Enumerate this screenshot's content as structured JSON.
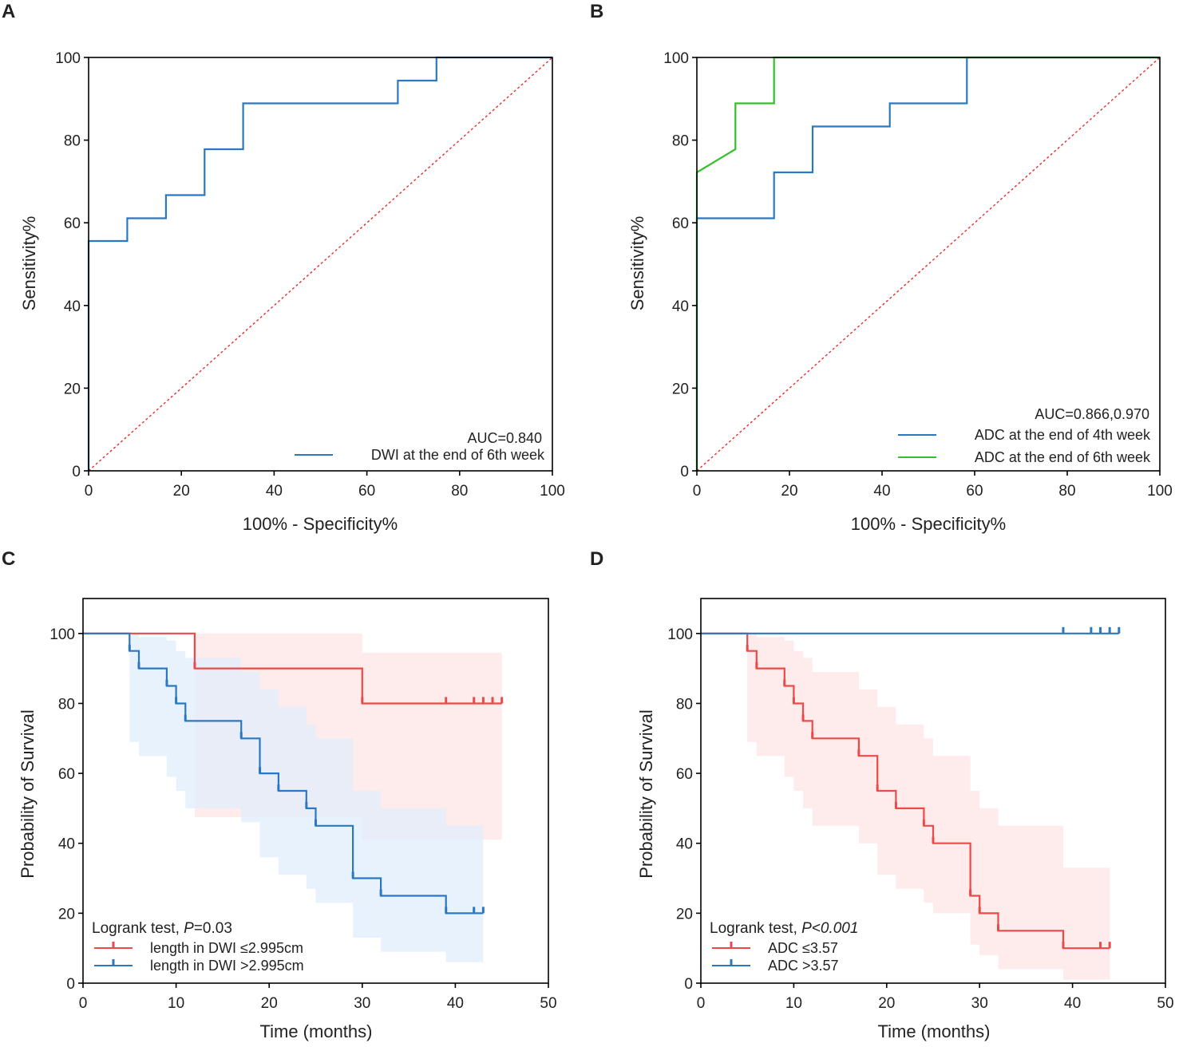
{
  "chart_data": [
    {
      "panel": "A",
      "type": "line",
      "subtype": "roc",
      "xlabel": "100% - Specificity%",
      "ylabel": "Sensitivity%",
      "xlim": [
        0,
        100
      ],
      "ylim": [
        0,
        100
      ],
      "xticks": [
        "0",
        "20",
        "40",
        "60",
        "80",
        "100"
      ],
      "yticks": [
        "0",
        "20",
        "40",
        "60",
        "80",
        "100"
      ],
      "auc_text": "AUC=0.840",
      "diagonal_color": "#e03030",
      "series": [
        {
          "name": "DWI at the end of 6th week",
          "color": "#2a78c2",
          "x": [
            0,
            0,
            8.33,
            8.33,
            16.67,
            16.67,
            25,
            25,
            33.33,
            33.33,
            66.67,
            66.67,
            75,
            75,
            100
          ],
          "y": [
            0,
            55.6,
            55.6,
            61.1,
            61.1,
            66.7,
            66.7,
            77.8,
            77.8,
            88.9,
            88.9,
            94.4,
            94.4,
            100,
            100
          ]
        }
      ]
    },
    {
      "panel": "B",
      "type": "line",
      "subtype": "roc",
      "xlabel": "100% - Specificity%",
      "ylabel": "Sensitivity%",
      "xlim": [
        0,
        100
      ],
      "ylim": [
        0,
        100
      ],
      "xticks": [
        "0",
        "20",
        "40",
        "60",
        "80",
        "100"
      ],
      "yticks": [
        "0",
        "20",
        "40",
        "60",
        "80",
        "100"
      ],
      "auc_text": "AUC=0.866,0.970",
      "diagonal_color": "#e03030",
      "series": [
        {
          "name": "ADC at the end of 4th week",
          "color": "#2a78c2",
          "x": [
            0,
            0,
            16.67,
            16.67,
            25,
            25,
            41.67,
            41.67,
            58.33,
            58.33,
            100
          ],
          "y": [
            0,
            61.1,
            61.1,
            72.2,
            72.2,
            83.3,
            83.3,
            88.9,
            88.9,
            100,
            100
          ]
        },
        {
          "name": "ADC at the end of 6th week",
          "color": "#33c02a",
          "x": [
            0,
            0,
            8.33,
            8.33,
            16.67,
            16.67,
            100
          ],
          "y": [
            0,
            72.2,
            77.8,
            88.9,
            88.9,
            100,
            100
          ]
        }
      ]
    },
    {
      "panel": "C",
      "type": "line",
      "subtype": "kaplan-meier",
      "xlabel": "Time (months)",
      "ylabel": "Probability of Survival",
      "xlim": [
        0,
        50
      ],
      "ylim": [
        0,
        110
      ],
      "xticks": [
        "0",
        "10",
        "20",
        "30",
        "40",
        "50"
      ],
      "yticks": [
        "0",
        "20",
        "40",
        "60",
        "80",
        "100"
      ],
      "logrank_prefix": "Logrank test, ",
      "logrank_p": "P",
      "logrank_value": "=0.03",
      "series": [
        {
          "name": "length in DWI ≤2.995cm",
          "color": "#ea4a4a",
          "fill": "#fde4e4",
          "x": [
            0,
            12,
            12,
            30,
            30,
            45
          ],
          "y": [
            100,
            100,
            90,
            90,
            80,
            80
          ],
          "ci_upper_x": [
            5,
            12,
            12,
            30,
            30,
            45
          ],
          "ci_upper_y": [
            100,
            100,
            100,
            100,
            94.5,
            94.5
          ],
          "ci_lower_x": [
            5,
            12,
            12,
            30,
            30,
            45
          ],
          "ci_lower_y": [
            100,
            100,
            47.5,
            47.5,
            41,
            41
          ],
          "censor_x": [
            12,
            30,
            39,
            42,
            43,
            44,
            45
          ],
          "censor_y": [
            90,
            80,
            80,
            80,
            80,
            80,
            80
          ]
        },
        {
          "name": "length in DWI >2.995cm",
          "color": "#2a78c2",
          "fill": "#e0edfb",
          "x": [
            0,
            5,
            5,
            6,
            6,
            9,
            9,
            10,
            10,
            11,
            11,
            17,
            17,
            19,
            19,
            21,
            21,
            24,
            24,
            25,
            25,
            29,
            29,
            32,
            32,
            39,
            39,
            43
          ],
          "y": [
            100,
            100,
            95,
            95,
            90,
            90,
            85,
            85,
            80,
            80,
            75,
            75,
            70,
            70,
            60,
            60,
            55,
            55,
            50,
            50,
            45,
            45,
            30,
            30,
            25,
            25,
            20,
            20
          ],
          "ci_upper_x": [
            5,
            6,
            9,
            10,
            11,
            17,
            19,
            21,
            24,
            25,
            29,
            32,
            39,
            43
          ],
          "ci_upper_y": [
            100,
            99,
            98,
            95,
            93,
            89,
            84,
            79,
            74,
            70,
            55,
            50,
            45,
            39
          ],
          "ci_lower_x": [
            5,
            6,
            9,
            10,
            11,
            17,
            19,
            21,
            24,
            25,
            29,
            32,
            39,
            43
          ],
          "ci_lower_y": [
            69,
            65,
            59,
            55,
            50,
            46,
            36,
            31,
            27,
            23,
            13,
            9,
            6,
            6
          ],
          "censor_x": [
            5,
            6,
            9,
            10,
            11,
            17,
            19,
            21,
            24,
            25,
            29,
            32,
            39,
            42,
            43
          ],
          "censor_y": [
            95,
            90,
            85,
            80,
            75,
            70,
            60,
            55,
            50,
            45,
            30,
            25,
            20,
            20,
            20
          ]
        }
      ]
    },
    {
      "panel": "D",
      "type": "line",
      "subtype": "kaplan-meier",
      "xlabel": "Time (months)",
      "ylabel": "Probability of Survival",
      "xlim": [
        0,
        50
      ],
      "ylim": [
        0,
        110
      ],
      "xticks": [
        "0",
        "10",
        "20",
        "30",
        "40",
        "50"
      ],
      "yticks": [
        "0",
        "20",
        "40",
        "60",
        "80",
        "100"
      ],
      "logrank_prefix": "Logrank test, ",
      "logrank_p": "P<0.001",
      "logrank_value": "",
      "series": [
        {
          "name": "ADC ≤3.57",
          "color": "#ea4a4a",
          "fill": "#fde4e4",
          "x": [
            0,
            5,
            5,
            6,
            6,
            9,
            9,
            10,
            10,
            11,
            11,
            12,
            12,
            17,
            17,
            19,
            19,
            21,
            21,
            24,
            24,
            25,
            25,
            29,
            29,
            30,
            30,
            32,
            32,
            39,
            39,
            44
          ],
          "y": [
            100,
            100,
            95,
            95,
            90,
            90,
            85,
            85,
            80,
            80,
            75,
            75,
            70,
            70,
            65,
            65,
            55,
            55,
            50,
            50,
            45,
            45,
            40,
            40,
            25,
            25,
            20,
            20,
            15,
            15,
            10,
            10
          ],
          "ci_upper_x": [
            5,
            6,
            9,
            10,
            11,
            12,
            17,
            19,
            21,
            24,
            25,
            29,
            30,
            32,
            39,
            44
          ],
          "ci_upper_y": [
            100,
            99,
            98,
            95,
            93,
            89,
            84,
            79,
            74,
            70,
            65,
            55,
            50,
            45,
            33,
            27
          ],
          "ci_lower_x": [
            5,
            6,
            9,
            10,
            11,
            12,
            17,
            19,
            21,
            24,
            25,
            29,
            30,
            32,
            39,
            44
          ],
          "ci_lower_y": [
            69,
            65,
            59,
            55,
            50,
            45,
            40,
            31,
            27,
            23,
            20,
            11,
            8,
            4,
            1,
            1
          ],
          "censor_x": [
            5,
            6,
            9,
            10,
            11,
            12,
            17,
            19,
            21,
            24,
            25,
            29,
            30,
            32,
            39,
            43,
            44
          ],
          "censor_y": [
            95,
            90,
            85,
            80,
            75,
            70,
            65,
            55,
            50,
            45,
            40,
            25,
            20,
            15,
            10,
            10,
            10
          ]
        },
        {
          "name": "ADC >3.57",
          "color": "#2a78c2",
          "fill": "none",
          "x": [
            0,
            45
          ],
          "y": [
            100,
            100
          ],
          "ci_upper_x": [],
          "ci_upper_y": [],
          "ci_lower_x": [],
          "ci_lower_y": [],
          "censor_x": [
            39,
            42,
            43,
            44,
            45
          ],
          "censor_y": [
            100,
            100,
            100,
            100,
            100
          ]
        }
      ]
    }
  ]
}
